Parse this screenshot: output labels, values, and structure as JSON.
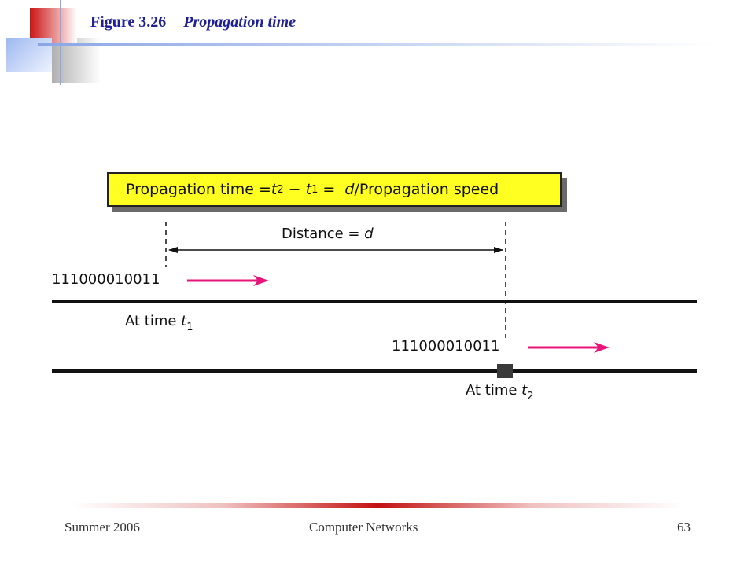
{
  "slide": {
    "figure_number": "Figure 3.26",
    "figure_caption": "Propagation time"
  },
  "formula": {
    "prefix": "Propagation time = ",
    "t2_var": "t",
    "t2_sub": "2",
    "minus": " − ",
    "t1_var": "t",
    "t1_sub": "1",
    "equals": " =  ",
    "d_var": "d",
    "suffix": "/Propagation speed"
  },
  "distance": {
    "label": "Distance = ",
    "var": "d"
  },
  "top_line": {
    "bits": "111000010011",
    "time_label": "At time ",
    "time_var": "t",
    "time_sub": "1"
  },
  "bottom_line": {
    "bits": "111000010011",
    "time_label": "At time ",
    "time_var": "t",
    "time_sub": "2"
  },
  "footer": {
    "left": "Summer 2006",
    "center": "Computer Networks",
    "right": "63"
  },
  "colors": {
    "title": "#1f1f9a",
    "formula_box": "#ffff22",
    "arrow": "#e8157a",
    "corner_red": "#cc1414",
    "corner_blue": "#9db8f0"
  }
}
